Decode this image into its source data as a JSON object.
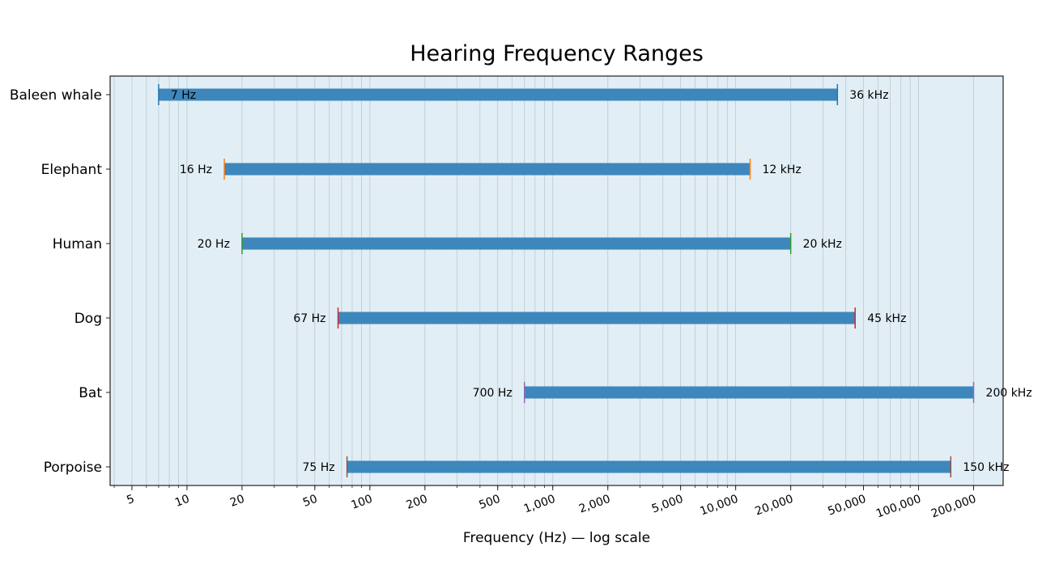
{
  "chart_data": {
    "type": "bar",
    "orientation": "horizontal-range",
    "title": "Hearing Frequency Ranges",
    "xlabel": "Frequency (Hz) — log scale",
    "ylabel": "",
    "x_scale": "log",
    "xlim": [
      3.8,
      290000
    ],
    "grid": "vertical",
    "x_ticks": [
      {
        "value": 5,
        "label": "5"
      },
      {
        "value": 10,
        "label": "10"
      },
      {
        "value": 20,
        "label": "20"
      },
      {
        "value": 50,
        "label": "50"
      },
      {
        "value": 100,
        "label": "100"
      },
      {
        "value": 200,
        "label": "200"
      },
      {
        "value": 500,
        "label": "500"
      },
      {
        "value": 1000,
        "label": "1,000"
      },
      {
        "value": 2000,
        "label": "2,000"
      },
      {
        "value": 5000,
        "label": "5,000"
      },
      {
        "value": 10000,
        "label": "10,000"
      },
      {
        "value": 20000,
        "label": "20,000"
      },
      {
        "value": 50000,
        "label": "50,000"
      },
      {
        "value": 100000,
        "label": "100,000"
      },
      {
        "value": 200000,
        "label": "200,000"
      }
    ],
    "categories": [
      "Baleen whale",
      "Elephant",
      "Human",
      "Dog",
      "Bat",
      "Porpoise"
    ],
    "ranges": [
      {
        "category": "Baleen whale",
        "low": 7,
        "high": 36000,
        "low_label": "7 Hz",
        "high_label": "36 kHz",
        "marker_color": "#1f77b4"
      },
      {
        "category": "Elephant",
        "low": 16,
        "high": 12000,
        "low_label": "16 Hz",
        "high_label": "12 kHz",
        "marker_color": "#ff7f0e"
      },
      {
        "category": "Human",
        "low": 20,
        "high": 20000,
        "low_label": "20 Hz",
        "high_label": "20 kHz",
        "marker_color": "#2ca02c"
      },
      {
        "category": "Dog",
        "low": 67,
        "high": 45000,
        "low_label": "67 Hz",
        "high_label": "45 kHz",
        "marker_color": "#d62728"
      },
      {
        "category": "Bat",
        "low": 700,
        "high": 200000,
        "low_label": "700 Hz",
        "high_label": "200 kHz",
        "marker_color": "#9467bd"
      },
      {
        "category": "Porpoise",
        "low": 75,
        "high": 150000,
        "low_label": "75 Hz",
        "high_label": "150 kHz",
        "marker_color": "#8c564b"
      }
    ],
    "bar_color": "#3d87bd",
    "plot_background": "#e2eef5"
  }
}
